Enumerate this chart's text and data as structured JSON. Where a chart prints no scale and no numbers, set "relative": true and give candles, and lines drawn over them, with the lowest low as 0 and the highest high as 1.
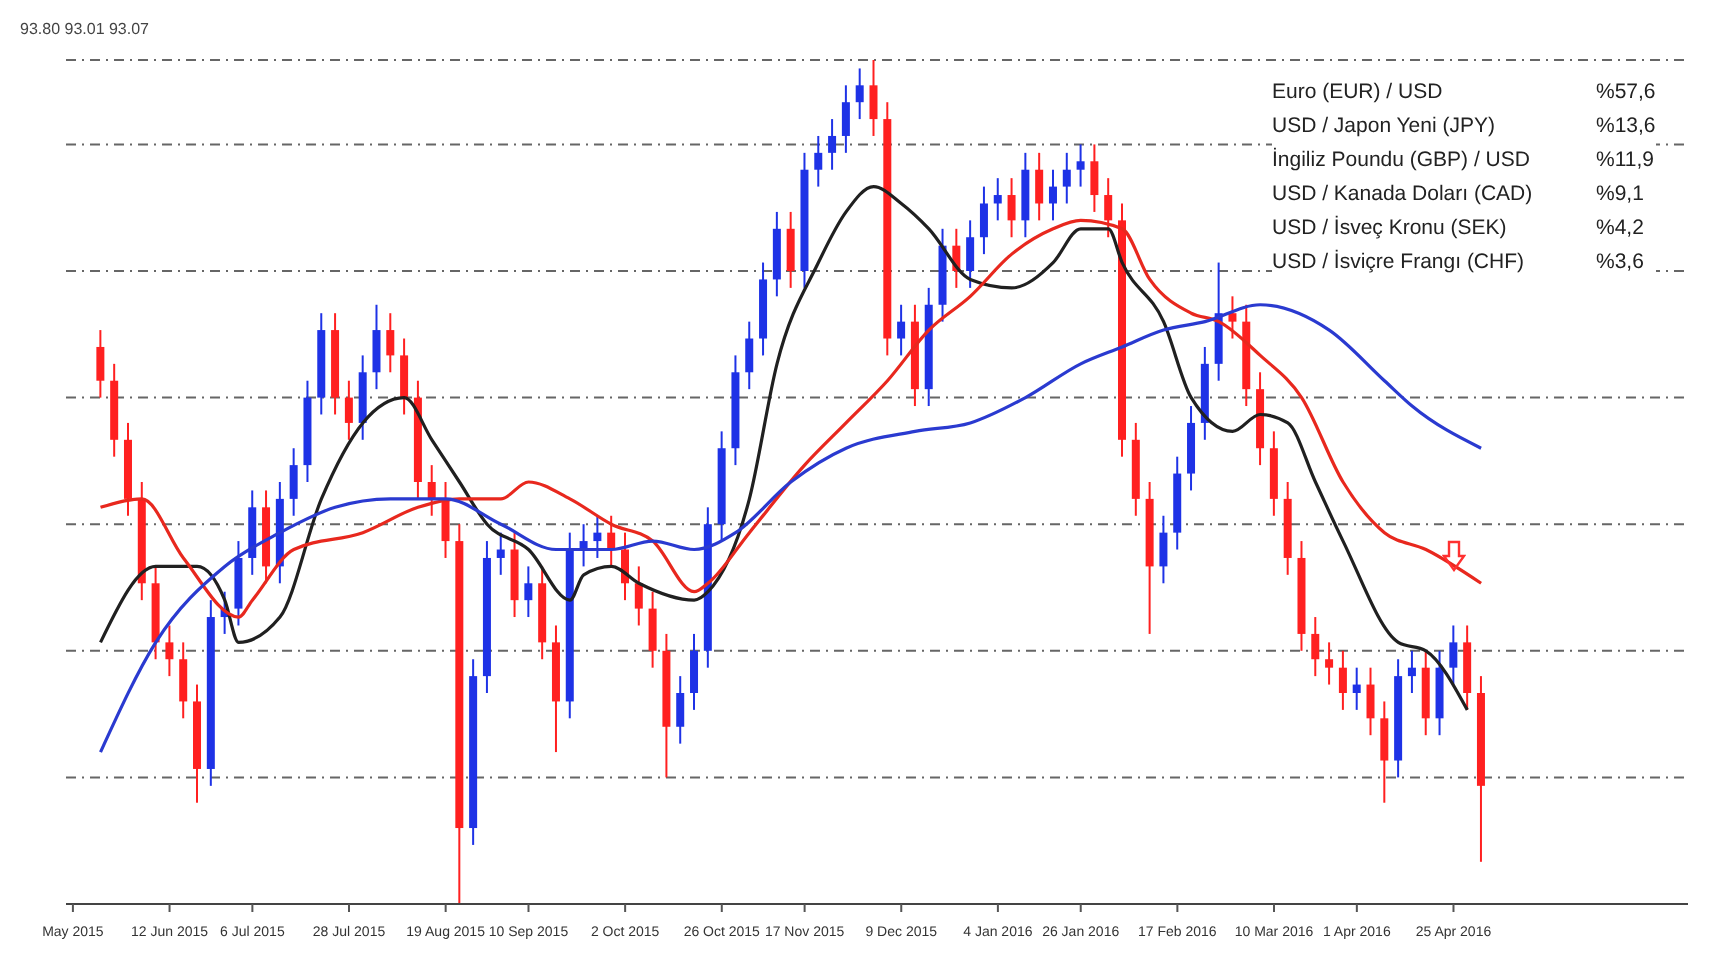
{
  "chart_data": {
    "type": "candlestick",
    "relative": true,
    "grid": "y",
    "tick_labels": "x",
    "legend": false,
    "categories": [
      "May 2015",
      null,
      null,
      null,
      null,
      null,
      null,
      "12 Jun 2015",
      null,
      null,
      null,
      null,
      null,
      "6 Jul 2015",
      null,
      null,
      null,
      null,
      null,
      null,
      "28 Jul 2015",
      null,
      null,
      null,
      null,
      null,
      null,
      "19 Aug 2015",
      null,
      null,
      null,
      null,
      null,
      "10 Sep 2015",
      null,
      null,
      null,
      null,
      null,
      null,
      "2 Oct 2015",
      null,
      null,
      null,
      null,
      null,
      null,
      "26 Oct 2015",
      null,
      null,
      null,
      null,
      null,
      "17 Nov 2015",
      null,
      null,
      null,
      null,
      null,
      null,
      "9 Dec 2015",
      null,
      null,
      null,
      null,
      null,
      null,
      "4 Jan 2016",
      null,
      null,
      null,
      null,
      null,
      "26 Jan 2016",
      null,
      null,
      null,
      null,
      null,
      null,
      "17 Feb 2016",
      null,
      null,
      null,
      null,
      null,
      null,
      "10 Mar 2016",
      null,
      null,
      null,
      null,
      null,
      "1 Apr 2016",
      null,
      null,
      null,
      null,
      null,
      null,
      "25 Apr 2016",
      null,
      null
    ],
    "annotations": [
      "93.80 93.01 93.07",
      "Euro (EUR) / USD",
      "%57,6",
      "USD / Japon Yeni (JPY)",
      "%13,6",
      "İngiliz Poundu (GBP) / USD",
      "%11,9",
      "USD / Kanada Doları (CAD)",
      "%9,1",
      "USD / İsveç Kronu (SEK)",
      "%4,2",
      "USD / İsviçre Frangı (CHF)",
      "%3,6"
    ],
    "series": [
      {
        "color": "#1e32e6",
        "ohlc": [
          null,
          null,
          null,
          null,
          null,
          null,
          null,
          null,
          null,
          null,
          [
            0.16,
            0.36,
            0.14,
            0.34
          ],
          [
            0.34,
            0.37,
            0.32,
            0.35
          ],
          [
            0.35,
            0.43,
            0.33,
            0.41
          ],
          [
            0.41,
            0.49,
            0.39,
            0.47
          ],
          null,
          [
            0.4,
            0.5,
            0.38,
            0.48
          ],
          [
            0.48,
            0.54,
            0.46,
            0.52
          ],
          [
            0.52,
            0.62,
            0.5,
            0.6
          ],
          [
            0.6,
            0.7,
            0.58,
            0.68
          ],
          null,
          null,
          [
            0.57,
            0.65,
            0.55,
            0.63
          ],
          [
            0.63,
            0.71,
            0.61,
            0.68
          ],
          null,
          null,
          null,
          null,
          null,
          null,
          [
            0.09,
            0.29,
            0.07,
            0.27
          ],
          [
            0.27,
            0.43,
            0.25,
            0.41
          ],
          [
            0.41,
            0.44,
            0.39,
            0.42
          ],
          null,
          [
            0.36,
            0.4,
            0.34,
            0.38
          ],
          null,
          null,
          [
            0.24,
            0.44,
            0.22,
            0.42
          ],
          [
            0.42,
            0.45,
            0.4,
            0.43
          ],
          [
            0.43,
            0.46,
            0.41,
            0.44
          ],
          null,
          null,
          null,
          null,
          null,
          [
            0.21,
            0.27,
            0.19,
            0.25
          ],
          [
            0.25,
            0.32,
            0.23,
            0.3
          ],
          [
            0.3,
            0.47,
            0.28,
            0.45
          ],
          [
            0.45,
            0.56,
            0.43,
            0.54
          ],
          [
            0.54,
            0.65,
            0.52,
            0.63
          ],
          [
            0.63,
            0.69,
            0.61,
            0.67
          ],
          [
            0.67,
            0.76,
            0.65,
            0.74
          ],
          [
            0.74,
            0.82,
            0.72,
            0.8
          ],
          null,
          [
            0.75,
            0.89,
            0.73,
            0.87
          ],
          [
            0.87,
            0.91,
            0.85,
            0.89
          ],
          [
            0.89,
            0.93,
            0.87,
            0.91
          ],
          [
            0.91,
            0.97,
            0.89,
            0.95
          ],
          [
            0.95,
            0.99,
            0.93,
            0.97
          ],
          null,
          null,
          [
            0.67,
            0.71,
            0.65,
            0.69
          ],
          null,
          [
            0.61,
            0.73,
            0.59,
            0.71
          ],
          [
            0.71,
            0.8,
            0.69,
            0.78
          ],
          null,
          [
            0.75,
            0.81,
            0.73,
            0.79
          ],
          [
            0.79,
            0.85,
            0.77,
            0.83
          ],
          [
            0.83,
            0.86,
            0.81,
            0.84
          ],
          null,
          [
            0.81,
            0.89,
            0.79,
            0.87
          ],
          null,
          [
            0.83,
            0.87,
            0.81,
            0.85
          ],
          [
            0.85,
            0.89,
            0.83,
            0.87
          ],
          [
            0.87,
            0.9,
            0.85,
            0.88
          ],
          null,
          null,
          null,
          null,
          null,
          [
            0.4,
            0.46,
            0.38,
            0.44
          ],
          [
            0.44,
            0.53,
            0.42,
            0.51
          ],
          [
            0.51,
            0.59,
            0.49,
            0.57
          ],
          [
            0.57,
            0.66,
            0.55,
            0.64
          ],
          [
            0.64,
            0.76,
            0.62,
            0.7
          ],
          null,
          null,
          null,
          null,
          null,
          null,
          null,
          null,
          null,
          [
            0.25,
            0.28,
            0.23,
            0.26
          ],
          null,
          null,
          [
            0.17,
            0.29,
            0.15,
            0.27
          ],
          [
            0.27,
            0.3,
            0.25,
            0.28
          ],
          null,
          [
            0.22,
            0.3,
            0.2,
            0.28
          ],
          [
            0.28,
            0.33,
            0.26,
            0.31
          ],
          null,
          null
        ]
      },
      {
        "color": "#ff2020",
        "ohlc": [
          null,
          null,
          [
            0.66,
            0.68,
            0.6,
            0.62
          ],
          [
            0.62,
            0.64,
            0.53,
            0.55
          ],
          [
            0.55,
            0.57,
            0.46,
            0.48
          ],
          [
            0.48,
            0.5,
            0.36,
            0.38
          ],
          [
            0.38,
            0.4,
            0.29,
            0.31
          ],
          [
            0.31,
            0.33,
            0.27,
            0.29
          ],
          [
            0.29,
            0.31,
            0.22,
            0.24
          ],
          [
            0.24,
            0.26,
            0.12,
            0.16
          ],
          null,
          null,
          null,
          null,
          [
            0.47,
            0.49,
            0.38,
            0.4
          ],
          null,
          null,
          null,
          null,
          [
            0.68,
            0.7,
            0.58,
            0.6
          ],
          [
            0.6,
            0.62,
            0.55,
            0.57
          ],
          null,
          null,
          [
            0.68,
            0.7,
            0.63,
            0.65
          ],
          [
            0.65,
            0.67,
            0.58,
            0.6
          ],
          [
            0.6,
            0.62,
            0.48,
            0.5
          ],
          [
            0.5,
            0.52,
            0.46,
            0.48
          ],
          [
            0.48,
            0.5,
            0.41,
            0.43
          ],
          [
            0.43,
            0.45,
            0,
            0.09
          ],
          null,
          null,
          null,
          [
            0.42,
            0.44,
            0.34,
            0.36
          ],
          null,
          [
            0.38,
            0.4,
            0.29,
            0.31
          ],
          [
            0.31,
            0.33,
            0.18,
            0.24
          ],
          null,
          null,
          null,
          [
            0.44,
            0.46,
            0.4,
            0.42
          ],
          [
            0.42,
            0.44,
            0.36,
            0.38
          ],
          [
            0.38,
            0.4,
            0.33,
            0.35
          ],
          [
            0.35,
            0.37,
            0.28,
            0.3
          ],
          [
            0.3,
            0.32,
            0.15,
            0.21
          ],
          null,
          null,
          null,
          null,
          null,
          null,
          null,
          null,
          [
            0.8,
            0.82,
            0.73,
            0.75
          ],
          null,
          null,
          null,
          null,
          null,
          [
            0.97,
            1,
            0.91,
            0.93
          ],
          [
            0.93,
            0.95,
            0.65,
            0.67
          ],
          null,
          [
            0.69,
            0.71,
            0.59,
            0.61
          ],
          null,
          null,
          [
            0.78,
            0.8,
            0.73,
            0.75
          ],
          null,
          null,
          null,
          [
            0.84,
            0.86,
            0.79,
            0.81
          ],
          null,
          [
            0.87,
            0.89,
            0.81,
            0.83
          ],
          null,
          null,
          null,
          [
            0.88,
            0.9,
            0.82,
            0.84
          ],
          [
            0.84,
            0.86,
            0.79,
            0.81
          ],
          [
            0.81,
            0.83,
            0.53,
            0.55
          ],
          [
            0.55,
            0.57,
            0.46,
            0.48
          ],
          [
            0.48,
            0.5,
            0.32,
            0.4
          ],
          null,
          null,
          null,
          null,
          null,
          [
            0.7,
            0.72,
            0.67,
            0.69
          ],
          [
            0.69,
            0.71,
            0.59,
            0.61
          ],
          [
            0.61,
            0.63,
            0.52,
            0.54
          ],
          [
            0.54,
            0.56,
            0.46,
            0.48
          ],
          [
            0.48,
            0.5,
            0.39,
            0.41
          ],
          [
            0.41,
            0.43,
            0.3,
            0.32
          ],
          [
            0.32,
            0.34,
            0.27,
            0.29
          ],
          [
            0.29,
            0.31,
            0.26,
            0.28
          ],
          [
            0.28,
            0.3,
            0.23,
            0.25
          ],
          null,
          [
            0.26,
            0.28,
            0.2,
            0.22
          ],
          [
            0.22,
            0.24,
            0.12,
            0.17
          ],
          null,
          null,
          [
            0.28,
            0.3,
            0.2,
            0.22
          ],
          null,
          null,
          [
            0.31,
            0.33,
            0.23,
            0.25
          ],
          [
            0.25,
            0.27,
            0.05,
            0.14
          ]
        ]
      },
      {
        "type": "line",
        "color": "#202020",
        "values": [
          null,
          null,
          0.31,
          null,
          null,
          null,
          0.4,
          null,
          null,
          0.4,
          null,
          0.36,
          0.31,
          null,
          null,
          0.34,
          null,
          null,
          0.48,
          null,
          null,
          0.57,
          null,
          null,
          0.6,
          null,
          0.55,
          null,
          0.5,
          null,
          0.45,
          null,
          null,
          0.42,
          null,
          null,
          0.36,
          0.39,
          null,
          0.4,
          null,
          0.38,
          null,
          null,
          null,
          0.36,
          0.37,
          null,
          null,
          0.48,
          null,
          0.64,
          null,
          null,
          0.76,
          null,
          0.82,
          null,
          0.85,
          null,
          0.83,
          null,
          0.8,
          null,
          null,
          0.74,
          null,
          null,
          0.73,
          null,
          null,
          0.76,
          null,
          0.8,
          null,
          0.8,
          0.76,
          null,
          null,
          0.69,
          null,
          0.6,
          null,
          null,
          0.56,
          null,
          0.58,
          null,
          0.57,
          null,
          0.5,
          null,
          0.43,
          null,
          null,
          null,
          0.31,
          null,
          0.3,
          null,
          null,
          0.23,
          null
        ]
      },
      {
        "type": "line",
        "color": "#e8281e",
        "values": [
          null,
          null,
          0.47,
          null,
          null,
          0.48,
          null,
          null,
          0.41,
          null,
          null,
          null,
          0.34,
          0.36,
          null,
          null,
          0.42,
          null,
          null,
          null,
          null,
          0.44,
          null,
          null,
          null,
          0.47,
          null,
          null,
          0.48,
          null,
          null,
          0.48,
          null,
          0.5,
          null,
          null,
          0.48,
          null,
          null,
          0.45,
          null,
          null,
          0.43,
          null,
          null,
          0.37,
          0.38,
          null,
          null,
          0.44,
          null,
          null,
          null,
          0.52,
          null,
          null,
          0.57,
          null,
          null,
          0.62,
          null,
          null,
          0.68,
          null,
          null,
          0.72,
          null,
          null,
          0.77,
          null,
          null,
          0.8,
          null,
          0.81,
          null,
          null,
          0.8,
          null,
          0.74,
          null,
          null,
          0.7,
          null,
          0.69,
          null,
          null,
          0.65,
          null,
          null,
          0.6,
          null,
          null,
          0.5,
          null,
          null,
          0.44,
          null,
          null,
          0.42,
          null,
          null,
          null,
          0.38
        ]
      },
      {
        "type": "line",
        "color": "#2a3ad0",
        "values": [
          null,
          null,
          0.18,
          null,
          null,
          null,
          0.31,
          null,
          null,
          null,
          null,
          0.4,
          null,
          null,
          null,
          0.44,
          null,
          null,
          null,
          0.47,
          null,
          null,
          null,
          0.48,
          null,
          null,
          null,
          0.48,
          null,
          null,
          null,
          0.45,
          null,
          null,
          null,
          0.42,
          null,
          null,
          null,
          0.42,
          null,
          null,
          0.43,
          null,
          null,
          0.42,
          null,
          null,
          0.44,
          null,
          null,
          null,
          0.5,
          null,
          null,
          null,
          0.54,
          null,
          null,
          null,
          null,
          0.56,
          null,
          null,
          null,
          0.57,
          null,
          null,
          null,
          0.6,
          null,
          null,
          null,
          0.64,
          null,
          null,
          0.66,
          null,
          null,
          0.68,
          null,
          null,
          0.69,
          null,
          null,
          null,
          0.71,
          null,
          null,
          null,
          null,
          0.68,
          null,
          null,
          null,
          0.62,
          null,
          0.59,
          null,
          null,
          null,
          null,
          0.54
        ]
      }
    ]
  }
}
